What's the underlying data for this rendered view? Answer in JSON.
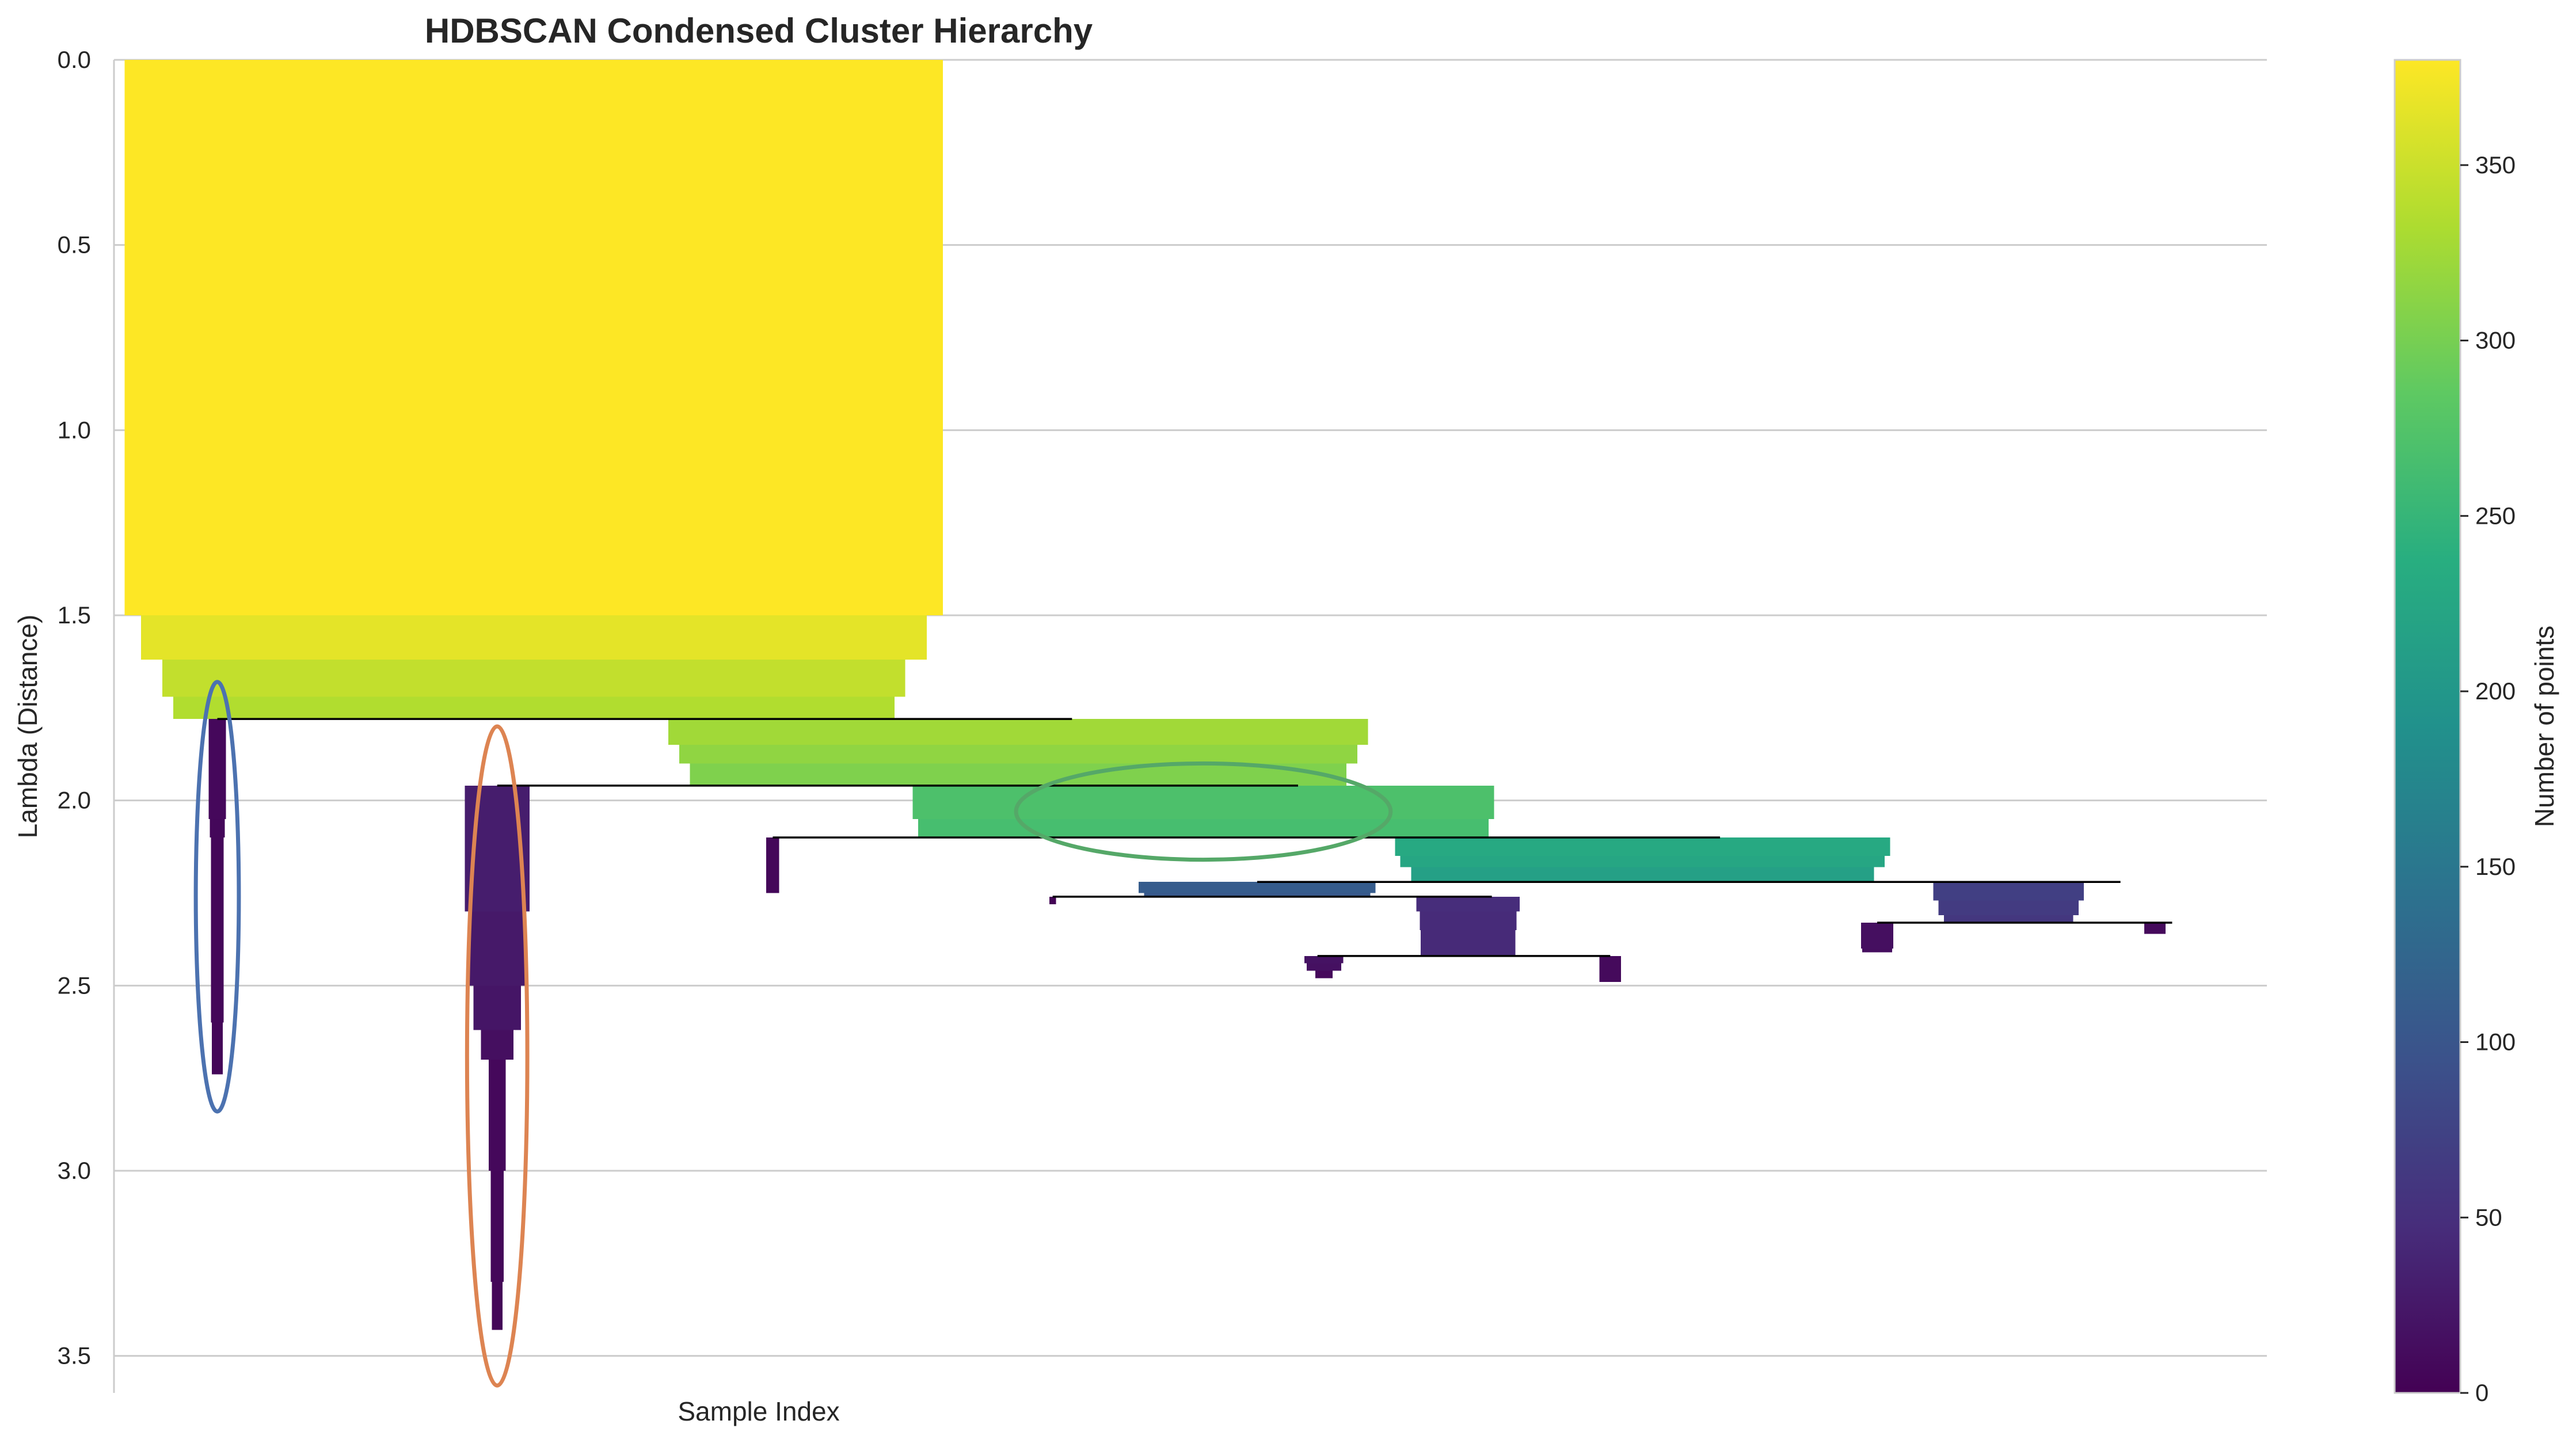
{
  "chart_data": {
    "type": "icicle",
    "title": "HDBSCAN Condensed Cluster Hierarchy",
    "xlabel": "Sample Index",
    "ylabel": "Lambda (Distance)",
    "ylim": [
      0,
      3.6
    ],
    "y_inverted": true,
    "yticks": [
      "0.0",
      "0.5",
      "1.0",
      "1.5",
      "2.0",
      "2.5",
      "3.0",
      "3.5"
    ],
    "grid": true,
    "colormap": "viridis",
    "colorbar": {
      "label": "Number of points",
      "range": [
        0,
        380
      ],
      "ticks": [
        "0",
        "50",
        "100",
        "150",
        "200",
        "250",
        "300",
        "350"
      ]
    },
    "xlim": [
      0,
      1000
    ],
    "clusters": [
      {
        "id": "root",
        "center": 195,
        "profile": [
          [
            0,
            380
          ],
          [
            1.4,
            380
          ],
          [
            1.5,
            365
          ],
          [
            1.62,
            345
          ],
          [
            1.72,
            335
          ],
          [
            1.78,
            330
          ]
        ]
      },
      {
        "id": "c1",
        "center": 48,
        "profile": [
          [
            1.78,
            8
          ],
          [
            2.05,
            7
          ],
          [
            2.1,
            6
          ],
          [
            2.6,
            5
          ],
          [
            2.74,
            5
          ]
        ]
      },
      {
        "id": "c2",
        "center": 420,
        "profile": [
          [
            1.78,
            325
          ],
          [
            1.85,
            315
          ],
          [
            1.9,
            305
          ],
          [
            1.96,
            300
          ]
        ]
      },
      {
        "id": "c3",
        "center": 178,
        "profile": [
          [
            1.96,
            30
          ],
          [
            2.3,
            26
          ],
          [
            2.5,
            22
          ],
          [
            2.62,
            15
          ],
          [
            2.7,
            8
          ],
          [
            3.0,
            6
          ],
          [
            3.3,
            5
          ],
          [
            3.43,
            5
          ]
        ]
      },
      {
        "id": "c4",
        "center": 506,
        "profile": [
          [
            1.96,
            270
          ],
          [
            2.05,
            265
          ],
          [
            2.1,
            262
          ]
        ]
      },
      {
        "id": "c5",
        "center": 306,
        "profile": [
          [
            2.1,
            6
          ],
          [
            2.25,
            6
          ]
        ]
      },
      {
        "id": "c6",
        "center": 710,
        "profile": [
          [
            2.1,
            230
          ],
          [
            2.15,
            225
          ],
          [
            2.18,
            215
          ],
          [
            2.22,
            210
          ]
        ]
      },
      {
        "id": "c7",
        "center": 436,
        "profile": [
          [
            2.26,
            3
          ],
          [
            2.28,
            3
          ]
        ]
      },
      {
        "id": "c8",
        "center": 531,
        "profile": [
          [
            2.22,
            110
          ],
          [
            2.25,
            105
          ],
          [
            2.26,
            100
          ]
        ]
      },
      {
        "id": "c9",
        "center": 629,
        "profile": [
          [
            2.26,
            48
          ],
          [
            2.3,
            45
          ],
          [
            2.35,
            44
          ],
          [
            2.42,
            42
          ]
        ]
      },
      {
        "id": "c10",
        "center": 880,
        "profile": [
          [
            2.22,
            70
          ],
          [
            2.27,
            65
          ],
          [
            2.31,
            60
          ],
          [
            2.33,
            58
          ]
        ]
      },
      {
        "id": "c11",
        "center": 562,
        "profile": [
          [
            2.42,
            18
          ],
          [
            2.44,
            16
          ],
          [
            2.46,
            8
          ],
          [
            2.48,
            6
          ]
        ]
      },
      {
        "id": "c12",
        "center": 695,
        "profile": [
          [
            2.42,
            10
          ],
          [
            2.49,
            9
          ]
        ]
      },
      {
        "id": "c13",
        "center": 819,
        "profile": [
          [
            2.33,
            15
          ],
          [
            2.4,
            14
          ],
          [
            2.41,
            14
          ]
        ]
      },
      {
        "id": "c14",
        "center": 948,
        "profile": [
          [
            2.33,
            10
          ],
          [
            2.36,
            9
          ]
        ]
      }
    ],
    "links": [
      {
        "lambda": 1.78,
        "from": 48,
        "to": 445
      },
      {
        "lambda": 1.96,
        "from": 178,
        "to": 550
      },
      {
        "lambda": 2.1,
        "from": 306,
        "to": 746
      },
      {
        "lambda": 2.22,
        "from": 531,
        "to": 932
      },
      {
        "lambda": 2.26,
        "from": 436,
        "to": 640
      },
      {
        "lambda": 2.42,
        "from": 559,
        "to": 695
      },
      {
        "lambda": 2.33,
        "from": 819,
        "to": 956
      }
    ],
    "highlights": [
      {
        "x_center": 48,
        "x_half_width": 10,
        "y_min": 1.68,
        "y_max": 2.84,
        "color": "#4c72b0"
      },
      {
        "x_center": 178,
        "x_half_width": 14,
        "y_min": 1.8,
        "y_max": 3.58,
        "color": "#dd8452"
      },
      {
        "x_center": 506,
        "x_half_width": 87,
        "y_min": 1.9,
        "y_max": 2.16,
        "color": "#55a868"
      }
    ]
  }
}
